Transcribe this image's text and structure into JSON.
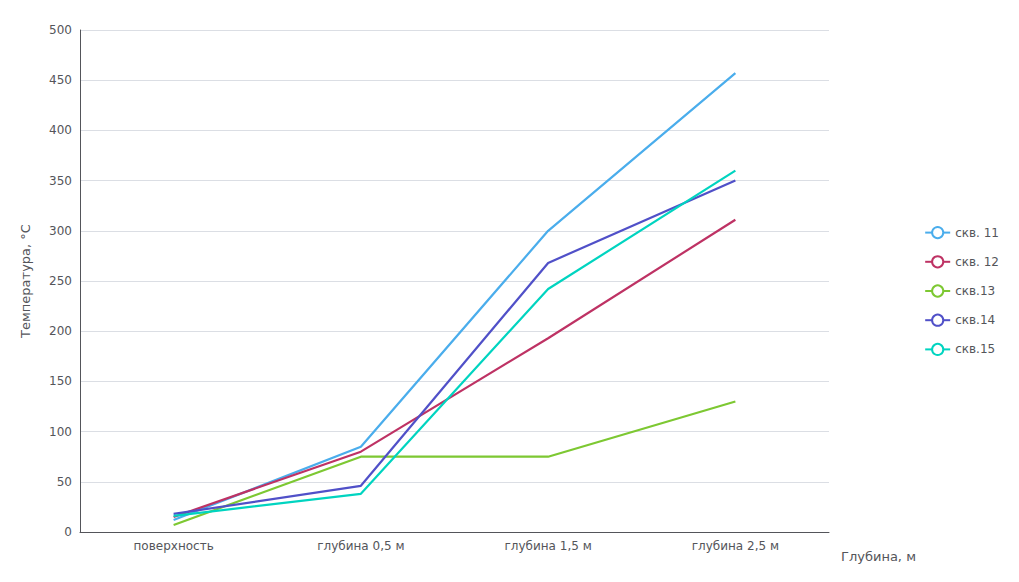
{
  "chart_data": {
    "type": "line",
    "xlabel": "Глубина, м",
    "ylabel": "Температура, °С",
    "categories": [
      "поверхность",
      "глубина 0,5 м",
      "глубина 1,5 м",
      "глубина 2,5 м"
    ],
    "series": [
      {
        "name": "скв. 11",
        "color": "#4AADEC",
        "values": [
          12,
          85,
          300,
          457
        ]
      },
      {
        "name": "скв. 12",
        "color": "#BE3264",
        "values": [
          15,
          80,
          193,
          311
        ]
      },
      {
        "name": "скв.13",
        "color": "#7DC832",
        "values": [
          7,
          75,
          75,
          130
        ]
      },
      {
        "name": "скв.14",
        "color": "#5050C8",
        "values": [
          18,
          46,
          268,
          350
        ]
      },
      {
        "name": "скв.15",
        "color": "#00D4C0",
        "values": [
          16,
          38,
          242,
          360
        ]
      }
    ],
    "ylim": [
      0,
      500
    ],
    "yticks": [
      0,
      50,
      100,
      150,
      200,
      250,
      300,
      350,
      400,
      450,
      500
    ],
    "grid": true,
    "legend": "right"
  }
}
